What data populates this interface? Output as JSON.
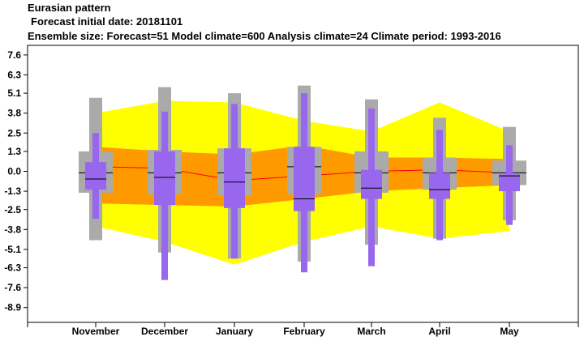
{
  "header": {
    "title": "Eurasian pattern",
    "forecast_date_line": "Forecast initial date: 20181101",
    "ensemble_line": "Ensemble size: Forecast=51 Model climate=600 Analysis climate=24   Climate period: 1993-2016"
  },
  "chart_data": {
    "type": "box",
    "categories": [
      "November",
      "December",
      "January",
      "February",
      "March",
      "April",
      "May"
    ],
    "yticks": [
      "7.6",
      "6.3",
      "5.1",
      "3.8",
      "2.5",
      "1.3",
      "0.0",
      "-1.3",
      "-2.5",
      "-3.8",
      "-5.1",
      "-6.3",
      "-7.6",
      "-8.9"
    ],
    "ylim": [
      -9.5,
      8.2
    ],
    "analysis_climate_band": {
      "outer_upper": [
        3.8,
        4.6,
        4.5,
        3.3,
        2.6,
        4.5,
        2.6
      ],
      "outer_lower": [
        -3.6,
        -4.6,
        -6.1,
        -4.6,
        -3.6,
        -4.4,
        -3.9
      ],
      "inner_upper": [
        1.6,
        1.3,
        1.1,
        1.7,
        0.9,
        0.9,
        0.8
      ],
      "inner_lower": [
        -2.1,
        -2.2,
        -2.3,
        -1.8,
        -1.3,
        -1.1,
        -0.9
      ],
      "median": [
        0.3,
        0.2,
        -0.6,
        -0.3,
        0.0,
        0.1,
        -0.1
      ]
    },
    "model_climate": {
      "max": [
        4.8,
        5.5,
        5.1,
        5.6,
        4.7,
        3.5,
        2.9
      ],
      "q75": [
        1.3,
        1.4,
        1.5,
        1.6,
        1.3,
        0.9,
        0.7
      ],
      "median": [
        -0.1,
        -0.1,
        -0.1,
        0.3,
        -0.1,
        -0.1,
        -0.1
      ],
      "q25": [
        -1.4,
        -1.5,
        -1.6,
        -1.5,
        -1.4,
        -1.2,
        -0.9
      ],
      "min": [
        -4.5,
        -5.3,
        -5.7,
        -5.9,
        -4.8,
        -4.4,
        -3.2
      ]
    },
    "forecast": {
      "max": [
        2.5,
        3.9,
        4.4,
        5.1,
        4.1,
        2.7,
        1.7
      ],
      "q75": [
        0.6,
        1.3,
        1.5,
        1.6,
        0.1,
        -0.1,
        -0.2
      ],
      "median": [
        -0.5,
        -0.4,
        -0.7,
        -1.8,
        -1.1,
        -1.2,
        -0.3
      ],
      "q25": [
        -1.2,
        -2.2,
        -2.4,
        -2.6,
        -1.8,
        -1.8,
        -1.3
      ],
      "min": [
        -3.1,
        -7.1,
        -5.7,
        -6.6,
        -6.2,
        -4.5,
        -3.5
      ]
    },
    "colors": {
      "outer_band": "#ffff00",
      "inner_band": "#ff9900",
      "median_line": "#ff0000",
      "model_climate": "#aaaaaa",
      "forecast": "#9966ee",
      "median_mark": "#000000"
    }
  }
}
